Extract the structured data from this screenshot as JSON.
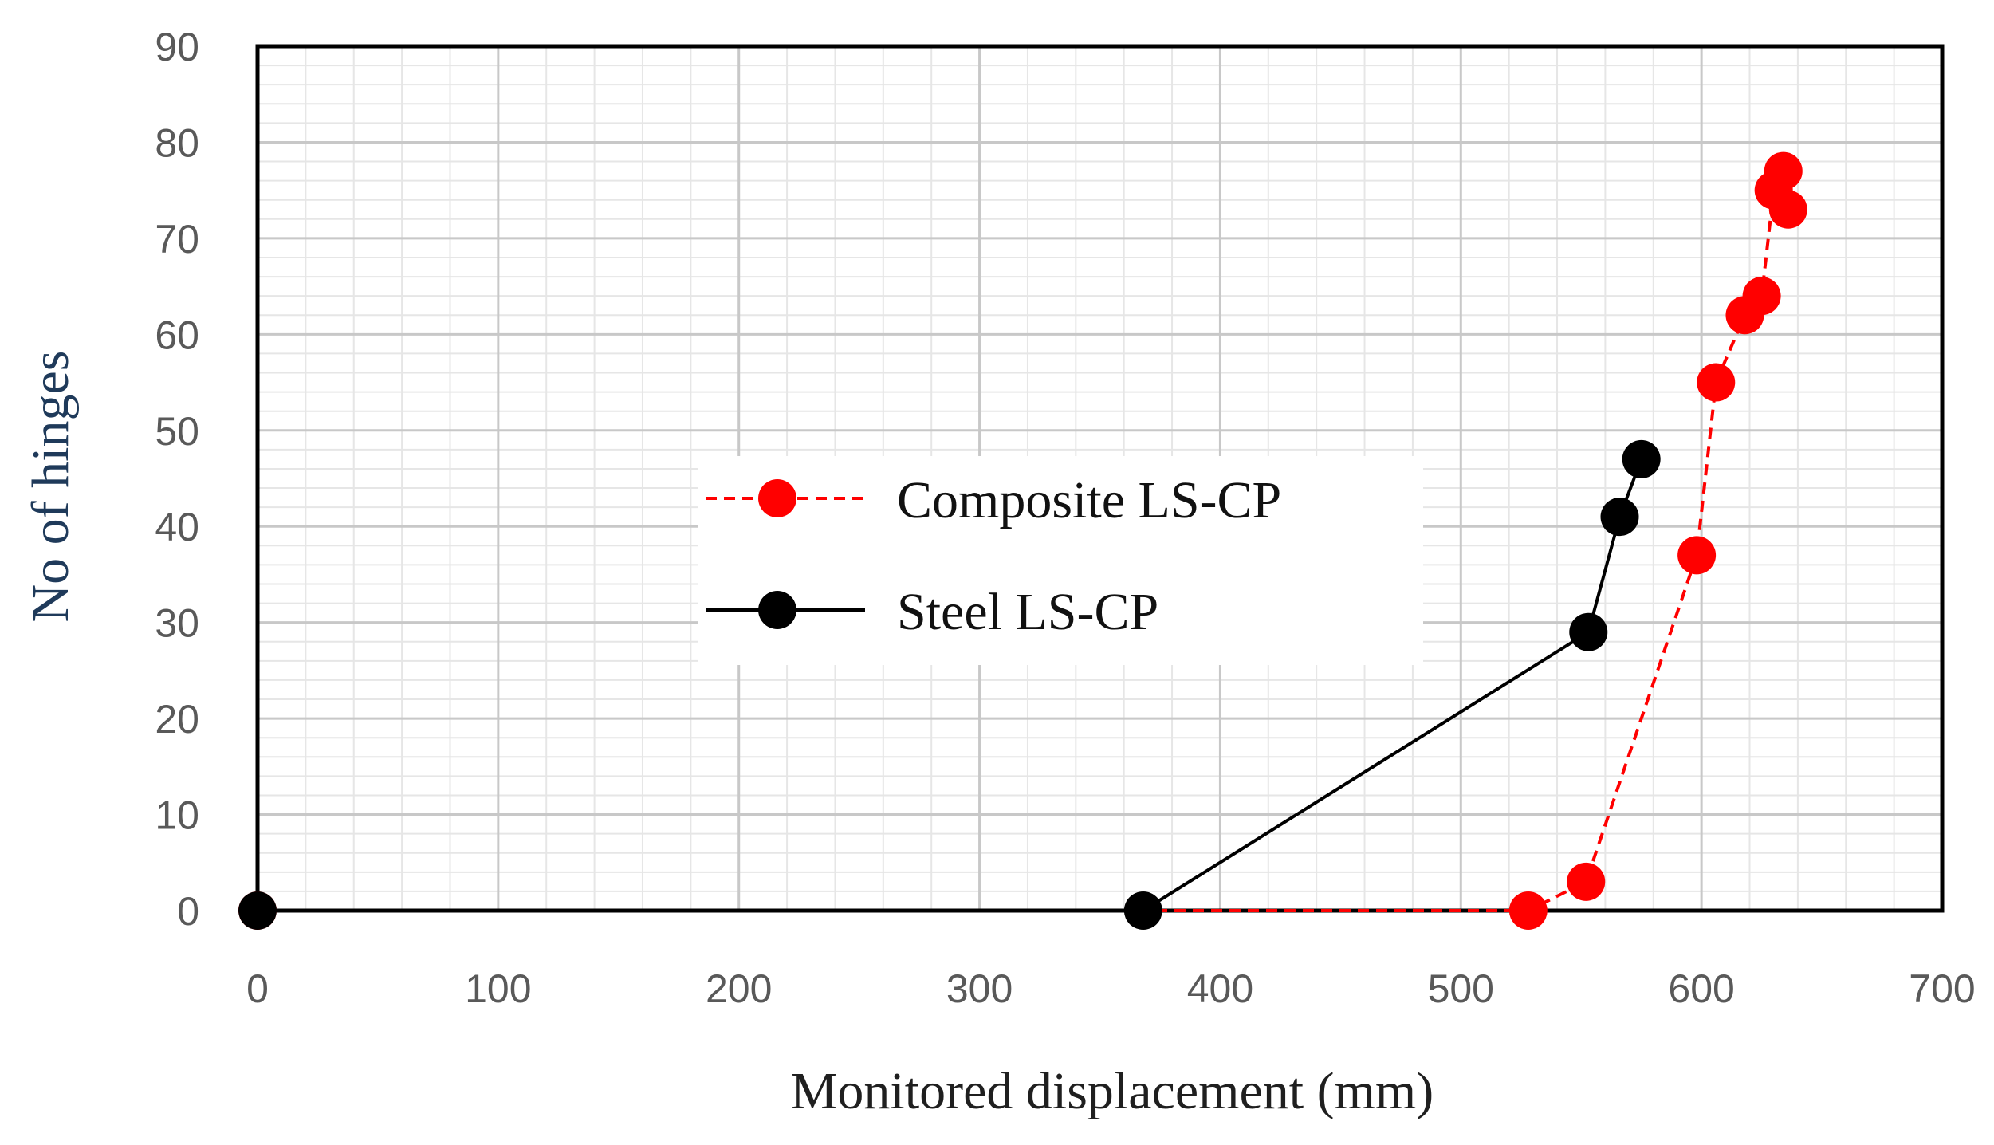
{
  "chart_data": {
    "type": "scatter",
    "xlabel": "Monitored displacement (mm)",
    "ylabel": "No of hinges",
    "xlim": [
      0,
      700
    ],
    "ylim": [
      0,
      90
    ],
    "x_ticks": [
      "0",
      "100",
      "200",
      "300",
      "400",
      "500",
      "600",
      "700"
    ],
    "y_ticks": [
      "0",
      "10",
      "20",
      "30",
      "40",
      "50",
      "60",
      "70",
      "80",
      "90"
    ],
    "grid": true,
    "legend_position": "center-right",
    "series": [
      {
        "name": "Composite LS-CP",
        "color": "#ff0000",
        "line_style": "dashed",
        "marker": "circle",
        "points": [
          [
            0,
            0
          ],
          [
            528,
            0
          ],
          [
            552,
            3
          ],
          [
            598,
            37
          ],
          [
            606,
            55
          ],
          [
            618,
            62
          ],
          [
            625,
            64
          ],
          [
            630,
            75
          ],
          [
            636,
            73
          ],
          [
            634,
            77
          ]
        ]
      },
      {
        "name": "Steel LS-CP",
        "color": "#000000",
        "line_style": "solid",
        "marker": "circle",
        "points": [
          [
            0,
            0
          ],
          [
            368,
            0
          ],
          [
            553,
            29
          ],
          [
            566,
            41
          ],
          [
            575,
            47
          ]
        ]
      }
    ]
  }
}
